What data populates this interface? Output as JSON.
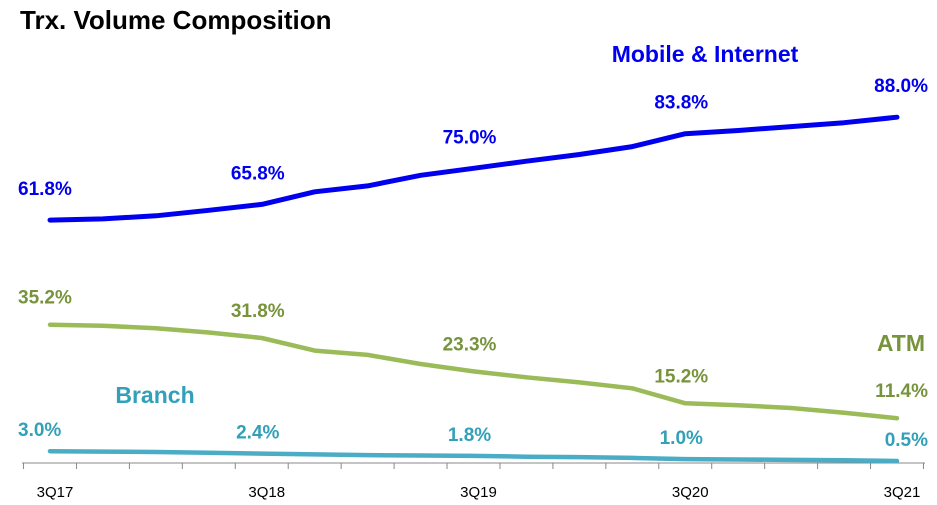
{
  "chart_data": {
    "type": "line",
    "title": "Trx. Volume Composition",
    "categories": [
      "3Q17",
      null,
      null,
      null,
      "3Q18",
      null,
      null,
      null,
      "3Q19",
      null,
      null,
      null,
      "3Q20",
      null,
      null,
      null,
      "3Q21"
    ],
    "ylim": [
      0,
      100
    ],
    "series": [
      {
        "name": "Mobile & Internet",
        "color": "#0000ee",
        "label_color": "#0000ee",
        "values": [
          61.8,
          62.1,
          62.9,
          64.3,
          65.8,
          69.0,
          70.5,
          73.2,
          75.0,
          76.8,
          78.5,
          80.5,
          83.8,
          84.6,
          85.6,
          86.6,
          88.0
        ],
        "value_labels": [
          "61.8%",
          null,
          null,
          null,
          "65.8%",
          null,
          null,
          null,
          "75.0%",
          null,
          null,
          null,
          "83.8%",
          null,
          null,
          null,
          "88.0%"
        ]
      },
      {
        "name": "ATM",
        "color": "#9bbb59",
        "label_color": "#77933c",
        "values": [
          35.2,
          34.9,
          34.3,
          33.2,
          31.8,
          28.6,
          27.5,
          25.2,
          23.3,
          21.8,
          20.5,
          19.0,
          15.2,
          14.7,
          14.0,
          12.8,
          11.4
        ],
        "value_labels": [
          "35.2%",
          null,
          null,
          null,
          "31.8%",
          null,
          null,
          null,
          "23.3%",
          null,
          null,
          null,
          "15.2%",
          null,
          null,
          null,
          "11.4%"
        ]
      },
      {
        "name": "Branch",
        "color": "#4bacc6",
        "label_color": "#31a0b8",
        "values": [
          3.0,
          2.9,
          2.8,
          2.6,
          2.4,
          2.2,
          2.0,
          1.9,
          1.8,
          1.6,
          1.5,
          1.3,
          1.0,
          0.9,
          0.8,
          0.7,
          0.5
        ],
        "value_labels": [
          "3.0%",
          null,
          null,
          null,
          "2.4%",
          null,
          null,
          null,
          "1.8%",
          null,
          null,
          null,
          "1.0%",
          null,
          null,
          null,
          "0.5%"
        ]
      }
    ]
  }
}
